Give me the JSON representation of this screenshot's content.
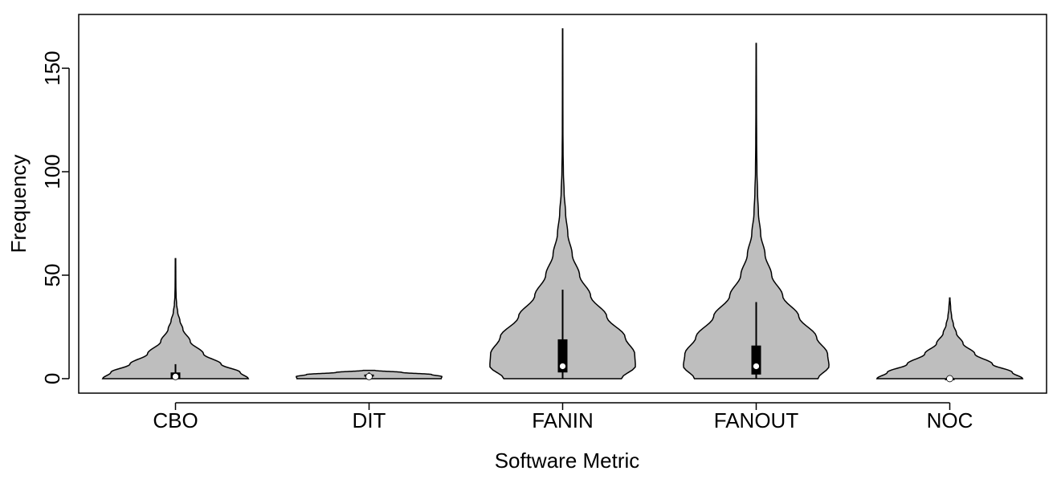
{
  "chart_data": {
    "type": "violin",
    "title": "",
    "xlabel": "Software Metric",
    "ylabel": "Frequency",
    "ylim": [
      -7,
      176
    ],
    "yticks": [
      0,
      50,
      100,
      150
    ],
    "grid": false,
    "legend": "none",
    "colors": {
      "fill": "#bebebe",
      "outline": "#000000",
      "box": "#000000",
      "median": "#ffffff"
    },
    "categories": [
      "CBO",
      "DIT",
      "FANIN",
      "FANOUT",
      "NOC"
    ],
    "series": [
      {
        "category": "CBO",
        "min": 0,
        "max": 58,
        "q1": 0,
        "median": 1,
        "q3": 3,
        "whisker_low": 0,
        "whisker_high": 7,
        "density_profile": [
          [
            0,
            0.99
          ],
          [
            3,
            0.88
          ],
          [
            7,
            0.62
          ],
          [
            12,
            0.38
          ],
          [
            18,
            0.2
          ],
          [
            24,
            0.1
          ],
          [
            28,
            0.06
          ],
          [
            32,
            0.03
          ],
          [
            36,
            0.015
          ],
          [
            40,
            0.008
          ],
          [
            45,
            0.005
          ],
          [
            50,
            0.004
          ],
          [
            58,
            0.003
          ]
        ]
      },
      {
        "category": "DIT",
        "min": 0,
        "max": 4,
        "q1": 1,
        "median": 1,
        "q3": 2,
        "whisker_low": 0,
        "whisker_high": 3,
        "density_profile": [
          [
            0,
            0.98
          ],
          [
            1,
            0.99
          ],
          [
            2,
            0.85
          ],
          [
            3,
            0.45
          ],
          [
            4,
            0.08
          ]
        ]
      },
      {
        "category": "FANIN",
        "min": 0,
        "max": 169,
        "q1": 3,
        "median": 6,
        "q3": 19,
        "whisker_low": 0,
        "whisker_high": 43,
        "density_profile": [
          [
            0,
            0.8
          ],
          [
            6,
            0.99
          ],
          [
            12,
            0.98
          ],
          [
            20,
            0.85
          ],
          [
            30,
            0.6
          ],
          [
            40,
            0.38
          ],
          [
            50,
            0.23
          ],
          [
            60,
            0.13
          ],
          [
            70,
            0.07
          ],
          [
            80,
            0.04
          ],
          [
            90,
            0.02
          ],
          [
            100,
            0.01
          ],
          [
            110,
            0.006
          ],
          [
            120,
            0.004
          ],
          [
            140,
            0.003
          ],
          [
            169,
            0.002
          ]
        ]
      },
      {
        "category": "FANOUT",
        "min": 0,
        "max": 162,
        "q1": 2,
        "median": 6,
        "q3": 16,
        "whisker_low": 0,
        "whisker_high": 37,
        "density_profile": [
          [
            0,
            0.84
          ],
          [
            6,
            0.99
          ],
          [
            12,
            0.97
          ],
          [
            20,
            0.82
          ],
          [
            30,
            0.58
          ],
          [
            40,
            0.36
          ],
          [
            50,
            0.21
          ],
          [
            60,
            0.12
          ],
          [
            70,
            0.06
          ],
          [
            80,
            0.03
          ],
          [
            90,
            0.018
          ],
          [
            100,
            0.01
          ],
          [
            115,
            0.006
          ],
          [
            130,
            0.004
          ],
          [
            162,
            0.002
          ]
        ]
      },
      {
        "category": "NOC",
        "min": 0,
        "max": 39,
        "q1": 0,
        "median": 0,
        "q3": 0,
        "whisker_low": 0,
        "whisker_high": 0,
        "density_profile": [
          [
            0,
            0.99
          ],
          [
            3,
            0.85
          ],
          [
            7,
            0.58
          ],
          [
            12,
            0.34
          ],
          [
            17,
            0.18
          ],
          [
            22,
            0.09
          ],
          [
            26,
            0.05
          ],
          [
            30,
            0.025
          ],
          [
            34,
            0.012
          ],
          [
            39,
            0.003
          ]
        ]
      }
    ]
  }
}
